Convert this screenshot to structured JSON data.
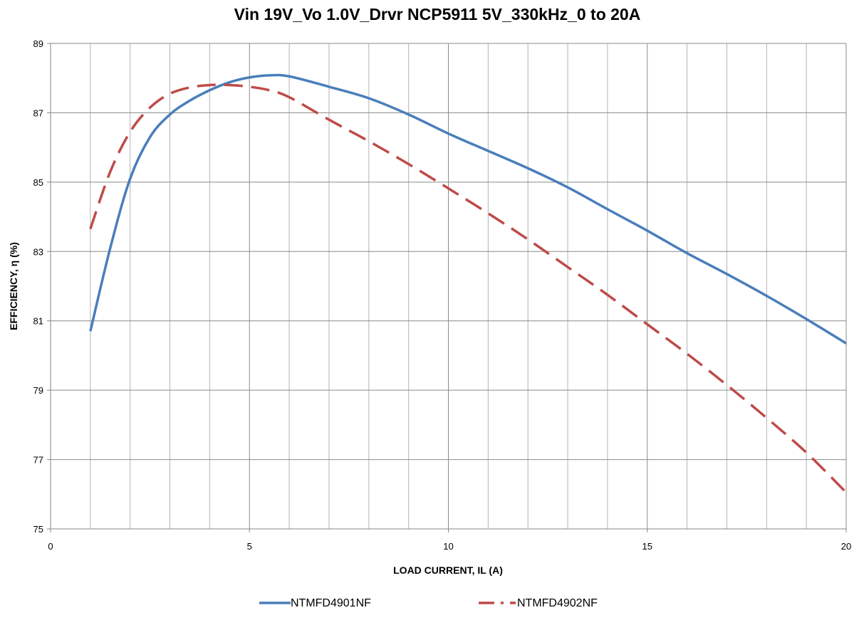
{
  "chart_data": {
    "type": "line",
    "title": "Vin 19V_Vo 1.0V_Drvr NCP5911 5V_330kHz_0 to 20A",
    "xlabel": "LOAD CURRENT, IL (A)",
    "ylabel": "EFFICIENCY, η (%)",
    "xlim": [
      0,
      20
    ],
    "ylim": [
      75,
      89
    ],
    "x_ticks": [
      0,
      5,
      10,
      15,
      20
    ],
    "y_ticks": [
      75,
      77,
      79,
      81,
      83,
      85,
      87,
      89
    ],
    "x_minor_gridlines_every": 1,
    "grid": true,
    "legend_position": "bottom",
    "series": [
      {
        "name": "NTMFD4901NF",
        "color": "#4a7ebb",
        "line_style": "solid",
        "points": [
          [
            1.0,
            80.7
          ],
          [
            1.5,
            83.1
          ],
          [
            2.0,
            85.1
          ],
          [
            2.5,
            86.3
          ],
          [
            3.0,
            86.95
          ],
          [
            3.5,
            87.35
          ],
          [
            4.0,
            87.65
          ],
          [
            4.5,
            87.88
          ],
          [
            5.0,
            88.02
          ],
          [
            5.5,
            88.08
          ],
          [
            6.0,
            88.05
          ],
          [
            7.0,
            87.75
          ],
          [
            8.0,
            87.42
          ],
          [
            9.0,
            86.95
          ],
          [
            10.0,
            86.4
          ],
          [
            11.0,
            85.9
          ],
          [
            12.0,
            85.4
          ],
          [
            13.0,
            84.85
          ],
          [
            14.0,
            84.22
          ],
          [
            15.0,
            83.6
          ],
          [
            16.0,
            82.95
          ],
          [
            17.0,
            82.35
          ],
          [
            18.0,
            81.72
          ],
          [
            19.0,
            81.05
          ],
          [
            20.0,
            80.35
          ]
        ]
      },
      {
        "name": "NTMFD4902NF",
        "color": "#be4b48",
        "line_style": "dashed",
        "points": [
          [
            1.0,
            83.65
          ],
          [
            1.5,
            85.3
          ],
          [
            2.0,
            86.45
          ],
          [
            2.5,
            87.15
          ],
          [
            3.0,
            87.55
          ],
          [
            3.5,
            87.73
          ],
          [
            4.0,
            87.8
          ],
          [
            4.5,
            87.8
          ],
          [
            5.0,
            87.75
          ],
          [
            5.5,
            87.65
          ],
          [
            6.0,
            87.45
          ],
          [
            7.0,
            86.8
          ],
          [
            8.0,
            86.18
          ],
          [
            9.0,
            85.52
          ],
          [
            10.0,
            84.82
          ],
          [
            11.0,
            84.1
          ],
          [
            12.0,
            83.35
          ],
          [
            13.0,
            82.55
          ],
          [
            14.0,
            81.75
          ],
          [
            15.0,
            80.9
          ],
          [
            16.0,
            80.05
          ],
          [
            17.0,
            79.15
          ],
          [
            18.0,
            78.2
          ],
          [
            19.0,
            77.2
          ],
          [
            20.0,
            76.05
          ]
        ]
      }
    ]
  }
}
